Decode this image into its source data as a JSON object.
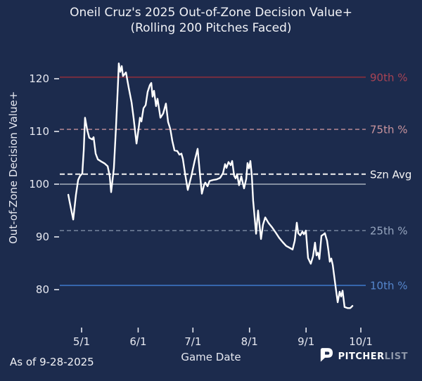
{
  "title": {
    "line1": "Oneil Cruz's 2025 Out-of-Zone Decision Value+",
    "line2": "(Rolling 200 Pitches Faced)"
  },
  "footer": {
    "as_of": "As of 9-28-2025",
    "brand": {
      "icon": "pitcherlist-p-logo",
      "name_bold": "PITCHER",
      "name_light": "LIST"
    }
  },
  "colors": {
    "background": "#1c2b4d",
    "title_text": "#f1f2f6",
    "axis_text": "#e6e8f0",
    "series_line": "#ffffff"
  },
  "chart_data": {
    "type": "line",
    "title": "Oneil Cruz's 2025 Out-of-Zone Decision Value+ (Rolling 200 Pitches Faced)",
    "xlabel": "Game Date",
    "ylabel": "Out-of-Zone Decision Value+",
    "ylim": [
      74,
      124
    ],
    "yticks": [
      80,
      90,
      100,
      110,
      120
    ],
    "x_unit": "days_from_5/1",
    "xticks": [
      {
        "label": "5/1",
        "day": 0
      },
      {
        "label": "6/1",
        "day": 31
      },
      {
        "label": "7/1",
        "day": 61
      },
      {
        "label": "8/1",
        "day": 92
      },
      {
        "label": "9/1",
        "day": 123
      },
      {
        "label": "10/1",
        "day": 153
      }
    ],
    "grid": false,
    "legend_position": "right-inline-labels",
    "reference_lines": [
      {
        "id": "90th-pct",
        "label": "90th %",
        "value": 120.3,
        "style": "solid",
        "dash": "",
        "width": 1.8,
        "color": "#832e3e",
        "label_color": "#a84354"
      },
      {
        "id": "75th-pct",
        "label": "75th %",
        "value": 110.4,
        "style": "dashed",
        "dash": "6 4",
        "width": 1.6,
        "color": "#b98a93",
        "label_color": "#c9949d"
      },
      {
        "id": "szn-avg",
        "label": "Szn Avg",
        "value": 101.9,
        "style": "dashed",
        "dash": "7 4",
        "width": 2.0,
        "color": "#efefef",
        "label_color": "#f5f5f5"
      },
      {
        "id": "league-100",
        "label": "",
        "value": 100.0,
        "style": "solid",
        "dash": "",
        "width": 1.8,
        "color": "#929cab",
        "label_color": ""
      },
      {
        "id": "25th-pct",
        "label": "25th %",
        "value": 91.2,
        "style": "dashed",
        "dash": "6 4",
        "width": 1.6,
        "color": "#76869f",
        "label_color": "#97a6bf"
      },
      {
        "id": "10th-pct",
        "label": "10th %",
        "value": 80.8,
        "style": "solid",
        "dash": "",
        "width": 1.8,
        "color": "#3a6fba",
        "label_color": "#5586cc"
      }
    ],
    "series": [
      {
        "name": "Rolling 200-pitch Out-of-Zone Decision Value+",
        "color": "#ffffff",
        "points": [
          [
            -7.3,
            98.0
          ],
          [
            -6.5,
            96.6
          ],
          [
            -4.6,
            93.3
          ],
          [
            -3.1,
            98.0
          ],
          [
            -1.9,
            100.8
          ],
          [
            -0.8,
            101.6
          ],
          [
            0.4,
            102.0
          ],
          [
            1.2,
            106.5
          ],
          [
            1.9,
            112.6
          ],
          [
            3.1,
            110.3
          ],
          [
            4.2,
            108.8
          ],
          [
            5.8,
            108.5
          ],
          [
            6.6,
            108.9
          ],
          [
            7.7,
            105.8
          ],
          [
            8.9,
            104.7
          ],
          [
            10.8,
            104.3
          ],
          [
            12.7,
            103.9
          ],
          [
            14.3,
            103.4
          ],
          [
            15.4,
            101.5
          ],
          [
            16.2,
            98.5
          ],
          [
            17.7,
            103.0
          ],
          [
            18.9,
            111.0
          ],
          [
            20.0,
            119.5
          ],
          [
            20.4,
            122.9
          ],
          [
            21.2,
            121.3
          ],
          [
            22.0,
            122.4
          ],
          [
            22.7,
            120.5
          ],
          [
            24.3,
            121.2
          ],
          [
            25.8,
            118.3
          ],
          [
            27.4,
            115.5
          ],
          [
            28.5,
            112.5
          ],
          [
            30.1,
            107.7
          ],
          [
            31.2,
            110.5
          ],
          [
            32.0,
            112.6
          ],
          [
            32.8,
            111.9
          ],
          [
            33.9,
            114.4
          ],
          [
            35.1,
            115.0
          ],
          [
            36.2,
            117.5
          ],
          [
            37.4,
            118.8
          ],
          [
            38.2,
            119.2
          ],
          [
            38.9,
            116.6
          ],
          [
            39.7,
            117.7
          ],
          [
            40.8,
            114.8
          ],
          [
            41.6,
            116.2
          ],
          [
            43.2,
            112.6
          ],
          [
            44.7,
            113.4
          ],
          [
            46.2,
            115.3
          ],
          [
            47.4,
            111.8
          ],
          [
            48.6,
            110.5
          ],
          [
            49.7,
            108.2
          ],
          [
            50.9,
            106.4
          ],
          [
            52.4,
            106.3
          ],
          [
            53.6,
            105.6
          ],
          [
            54.7,
            105.8
          ],
          [
            55.5,
            104.8
          ],
          [
            56.6,
            102.2
          ],
          [
            58.2,
            98.9
          ],
          [
            60.1,
            101.5
          ],
          [
            62.0,
            104.5
          ],
          [
            63.6,
            106.7
          ],
          [
            64.7,
            102.5
          ],
          [
            65.9,
            98.2
          ],
          [
            67.1,
            99.8
          ],
          [
            67.8,
            100.3
          ],
          [
            69.0,
            99.6
          ],
          [
            70.1,
            100.6
          ],
          [
            72.1,
            100.8
          ],
          [
            74.0,
            100.9
          ],
          [
            75.9,
            101.2
          ],
          [
            77.5,
            102.1
          ],
          [
            78.6,
            103.8
          ],
          [
            79.4,
            103.1
          ],
          [
            80.5,
            104.2
          ],
          [
            81.7,
            103.6
          ],
          [
            82.5,
            104.4
          ],
          [
            83.6,
            101.6
          ],
          [
            84.4,
            101.1
          ],
          [
            85.2,
            101.9
          ],
          [
            86.3,
            99.8
          ],
          [
            87.5,
            101.5
          ],
          [
            88.2,
            100.4
          ],
          [
            89.0,
            99.2
          ],
          [
            90.2,
            101.0
          ],
          [
            90.9,
            104.0
          ],
          [
            91.7,
            103.0
          ],
          [
            92.5,
            104.4
          ],
          [
            93.3,
            101.5
          ],
          [
            94.0,
            96.9
          ],
          [
            95.6,
            90.6
          ],
          [
            96.7,
            95.0
          ],
          [
            98.3,
            89.6
          ],
          [
            99.4,
            92.3
          ],
          [
            100.6,
            93.7
          ],
          [
            102.5,
            92.6
          ],
          [
            104.4,
            91.8
          ],
          [
            106.4,
            90.8
          ],
          [
            108.3,
            89.8
          ],
          [
            110.2,
            89.0
          ],
          [
            112.1,
            88.3
          ],
          [
            114.1,
            87.9
          ],
          [
            115.6,
            87.6
          ],
          [
            116.8,
            89.3
          ],
          [
            117.9,
            92.7
          ],
          [
            118.7,
            90.7
          ],
          [
            119.8,
            90.3
          ],
          [
            121.0,
            91.0
          ],
          [
            121.8,
            90.5
          ],
          [
            122.9,
            91.2
          ],
          [
            124.1,
            86.0
          ],
          [
            125.6,
            84.9
          ],
          [
            126.8,
            86.3
          ],
          [
            127.9,
            88.9
          ],
          [
            128.7,
            86.5
          ],
          [
            129.5,
            87.0
          ],
          [
            130.3,
            85.8
          ],
          [
            131.4,
            90.2
          ],
          [
            132.6,
            90.5
          ],
          [
            133.3,
            90.7
          ],
          [
            134.5,
            89.3
          ],
          [
            135.3,
            87.3
          ],
          [
            136.0,
            85.3
          ],
          [
            136.8,
            85.9
          ],
          [
            137.6,
            84.7
          ],
          [
            139.1,
            80.7
          ],
          [
            140.3,
            77.6
          ],
          [
            141.4,
            79.6
          ],
          [
            142.2,
            78.7
          ],
          [
            143.0,
            79.8
          ],
          [
            144.1,
            76.7
          ],
          [
            145.7,
            76.5
          ],
          [
            147.2,
            76.5
          ],
          [
            148.4,
            76.9
          ]
        ]
      }
    ]
  }
}
